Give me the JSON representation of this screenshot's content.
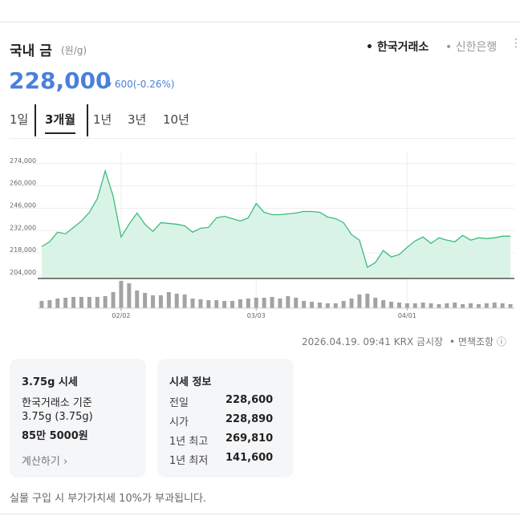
{
  "header": {
    "title": "국내 금",
    "unit": "(원/g)",
    "sources": [
      "한국거래소",
      "신한은행"
    ]
  },
  "quote": {
    "price": "228,000",
    "change": "600",
    "change_pct": "(-0.26%)"
  },
  "tabs": [
    "1일",
    "3개월",
    "1년",
    "3년",
    "10년"
  ],
  "chart_data": {
    "type": "area",
    "color": "#3dbb7c",
    "fill": "#d9f4e6",
    "volume_color": "#a3a3a3",
    "grid": true,
    "categories": [
      null,
      null,
      null,
      null,
      null,
      null,
      null,
      null,
      null,
      null,
      "02/02",
      null,
      null,
      null,
      null,
      null,
      null,
      null,
      null,
      null,
      null,
      null,
      null,
      null,
      null,
      null,
      null,
      "03/03",
      null,
      null,
      null,
      null,
      null,
      null,
      null,
      null,
      null,
      null,
      null,
      null,
      null,
      null,
      null,
      null,
      null,
      null,
      "04/01",
      null,
      null,
      null,
      null,
      null,
      null,
      null,
      null,
      null,
      null,
      null,
      null,
      null
    ],
    "values": [
      222000,
      225000,
      231000,
      230000,
      234000,
      238000,
      243500,
      252000,
      269500,
      253500,
      228000,
      236000,
      243000,
      236000,
      231500,
      237000,
      236500,
      236000,
      235000,
      231000,
      233500,
      234000,
      240000,
      241000,
      239500,
      238000,
      240000,
      249000,
      243500,
      242000,
      242000,
      242500,
      243000,
      244000,
      244000,
      243500,
      240500,
      239500,
      237000,
      229500,
      226000,
      209000,
      212000,
      219500,
      215500,
      217000,
      221500,
      225500,
      228000,
      224000,
      227500,
      226000,
      225000,
      229000,
      226000,
      227500,
      227000,
      227500,
      228500,
      228500
    ],
    "volumes": [
      9,
      10,
      12,
      13,
      14,
      14,
      14,
      14,
      15,
      20,
      34,
      31,
      22,
      19,
      16,
      16,
      20,
      18,
      17,
      12,
      11,
      10,
      10,
      9,
      9,
      11,
      12,
      13,
      13,
      14,
      12,
      15,
      13,
      9,
      8,
      7,
      6,
      6,
      9,
      12,
      17,
      18,
      13,
      10,
      8,
      7,
      6,
      6,
      7,
      6,
      5,
      6,
      7,
      5,
      6,
      5,
      6,
      7,
      6,
      5
    ],
    "ylim": [
      202000,
      281000
    ],
    "yticks": [
      {
        "value": 204000,
        "label": "204,000"
      },
      {
        "value": 218000,
        "label": "218,000"
      },
      {
        "value": 232000,
        "label": "232,000"
      },
      {
        "value": 246000,
        "label": "246,000"
      },
      {
        "value": 260000,
        "label": "260,000"
      },
      {
        "value": 274000,
        "label": "274,000"
      }
    ]
  },
  "footer": {
    "timestamp": "2026.04.19. 09:41 KRX 금시장",
    "disclaimer": "면책조항"
  },
  "card_375": {
    "title": "3.75g 시세",
    "basis": "한국거래소 기준",
    "weight": "3.75g (3.75g)",
    "price": "85만 5000원",
    "link": "계산하기"
  },
  "card_info": {
    "title": "시세 정보",
    "rows": [
      [
        "전일",
        "228,600"
      ],
      [
        "시가",
        "228,890"
      ],
      [
        "1년 최고",
        "269,810"
      ],
      [
        "1년 최저",
        "141,600"
      ]
    ]
  },
  "note": "실물 구입 시 부가가치세 10%가 부과됩니다."
}
